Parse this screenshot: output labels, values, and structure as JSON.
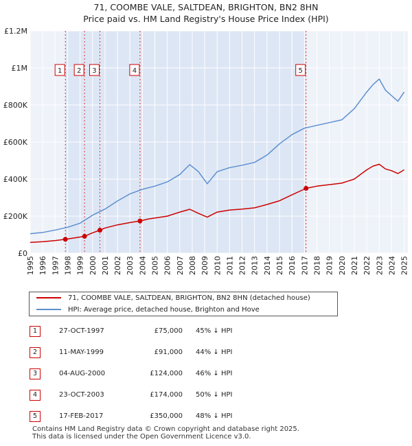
{
  "title_line1": "71, COOMBE VALE, SALTDEAN, BRIGHTON, BN2 8HN",
  "title_line2": "Price paid vs. HM Land Registry's House Price Index (HPI)",
  "chart_data": {
    "type": "line",
    "x_unit": "year",
    "xlim": [
      1995,
      2025.3
    ],
    "ylim": [
      0,
      1200000
    ],
    "y_ticks": [
      {
        "value": 0,
        "label": "£0"
      },
      {
        "value": 200000,
        "label": "£200K"
      },
      {
        "value": 400000,
        "label": "£400K"
      },
      {
        "value": 600000,
        "label": "£600K"
      },
      {
        "value": 800000,
        "label": "£800K"
      },
      {
        "value": 1000000,
        "label": "£1M"
      },
      {
        "value": 1200000,
        "label": "£1.2M"
      }
    ],
    "x_ticks": [
      "1995",
      "1996",
      "1997",
      "1998",
      "1999",
      "2000",
      "2001",
      "2002",
      "2003",
      "2004",
      "2005",
      "2006",
      "2007",
      "2008",
      "2009",
      "2010",
      "2011",
      "2012",
      "2013",
      "2014",
      "2015",
      "2016",
      "2017",
      "2018",
      "2019",
      "2020",
      "2021",
      "2022",
      "2023",
      "2024",
      "2025"
    ],
    "grid": true,
    "series": [
      {
        "name": "71, COOMBE VALE, SALTDEAN, BRIGHTON, BN2 8HN (detached house)",
        "color": "#cc0000",
        "x": [
          1995,
          1996,
          1997,
          1997.82,
          1998.5,
          1999.36,
          2000,
          2000.59,
          2001,
          2002,
          2003,
          2003.81,
          2004.5,
          2005,
          2006,
          2007,
          2007.8,
          2008.5,
          2009.2,
          2010,
          2011,
          2012,
          2013,
          2014,
          2015,
          2016,
          2017.13,
          2018,
          2019,
          2020,
          2021,
          2022,
          2022.5,
          2023,
          2023.5,
          2024,
          2024.5,
          2025
        ],
        "values": [
          58000,
          62000,
          68000,
          75000,
          82000,
          91000,
          110000,
          124000,
          136000,
          153000,
          165000,
          174000,
          185000,
          190000,
          200000,
          222000,
          237000,
          215000,
          195000,
          222000,
          233000,
          238000,
          245000,
          263000,
          283000,
          315000,
          350000,
          362000,
          370000,
          378000,
          400000,
          450000,
          470000,
          480000,
          455000,
          445000,
          430000,
          450000
        ]
      },
      {
        "name": "HPI: Average price, detached house, Brighton and Hove",
        "color": "#5b8fd0",
        "x": [
          1995,
          1996,
          1997,
          1998,
          1999,
          2000,
          2001,
          2002,
          2003,
          2004,
          2005,
          2006,
          2007,
          2007.8,
          2008.5,
          2009.2,
          2010,
          2011,
          2012,
          2013,
          2014,
          2015,
          2016,
          2017,
          2018,
          2019,
          2020,
          2021,
          2022,
          2022.5,
          2023,
          2023.5,
          2024,
          2024.5,
          2025
        ],
        "values": [
          105000,
          112000,
          125000,
          140000,
          162000,
          205000,
          238000,
          282000,
          320000,
          345000,
          362000,
          385000,
          425000,
          478000,
          440000,
          375000,
          440000,
          462000,
          475000,
          490000,
          530000,
          590000,
          640000,
          675000,
          690000,
          705000,
          720000,
          780000,
          870000,
          910000,
          940000,
          880000,
          850000,
          820000,
          870000
        ]
      }
    ],
    "sales": [
      {
        "label": "1",
        "x": 1997.82,
        "value": 75000
      },
      {
        "label": "2",
        "x": 1999.36,
        "value": 91000
      },
      {
        "label": "3",
        "x": 2000.59,
        "value": 124000
      },
      {
        "label": "4",
        "x": 2003.81,
        "value": 174000
      },
      {
        "label": "5",
        "x": 2017.13,
        "value": 350000
      }
    ],
    "legend_placement": "below"
  },
  "sales_table": [
    {
      "num": "1",
      "date": "27-OCT-1997",
      "price": "£75,000",
      "diff": "45% ↓ HPI"
    },
    {
      "num": "2",
      "date": "11-MAY-1999",
      "price": "£91,000",
      "diff": "44% ↓ HPI"
    },
    {
      "num": "3",
      "date": "04-AUG-2000",
      "price": "£124,000",
      "diff": "46% ↓ HPI"
    },
    {
      "num": "4",
      "date": "23-OCT-2003",
      "price": "£174,000",
      "diff": "50% ↓ HPI"
    },
    {
      "num": "5",
      "date": "17-FEB-2017",
      "price": "£350,000",
      "diff": "48% ↓ HPI"
    }
  ],
  "footer_line1": "Contains HM Land Registry data © Crown copyright and database right 2025.",
  "footer_line2": "This data is licensed under the Open Government Licence v3.0."
}
